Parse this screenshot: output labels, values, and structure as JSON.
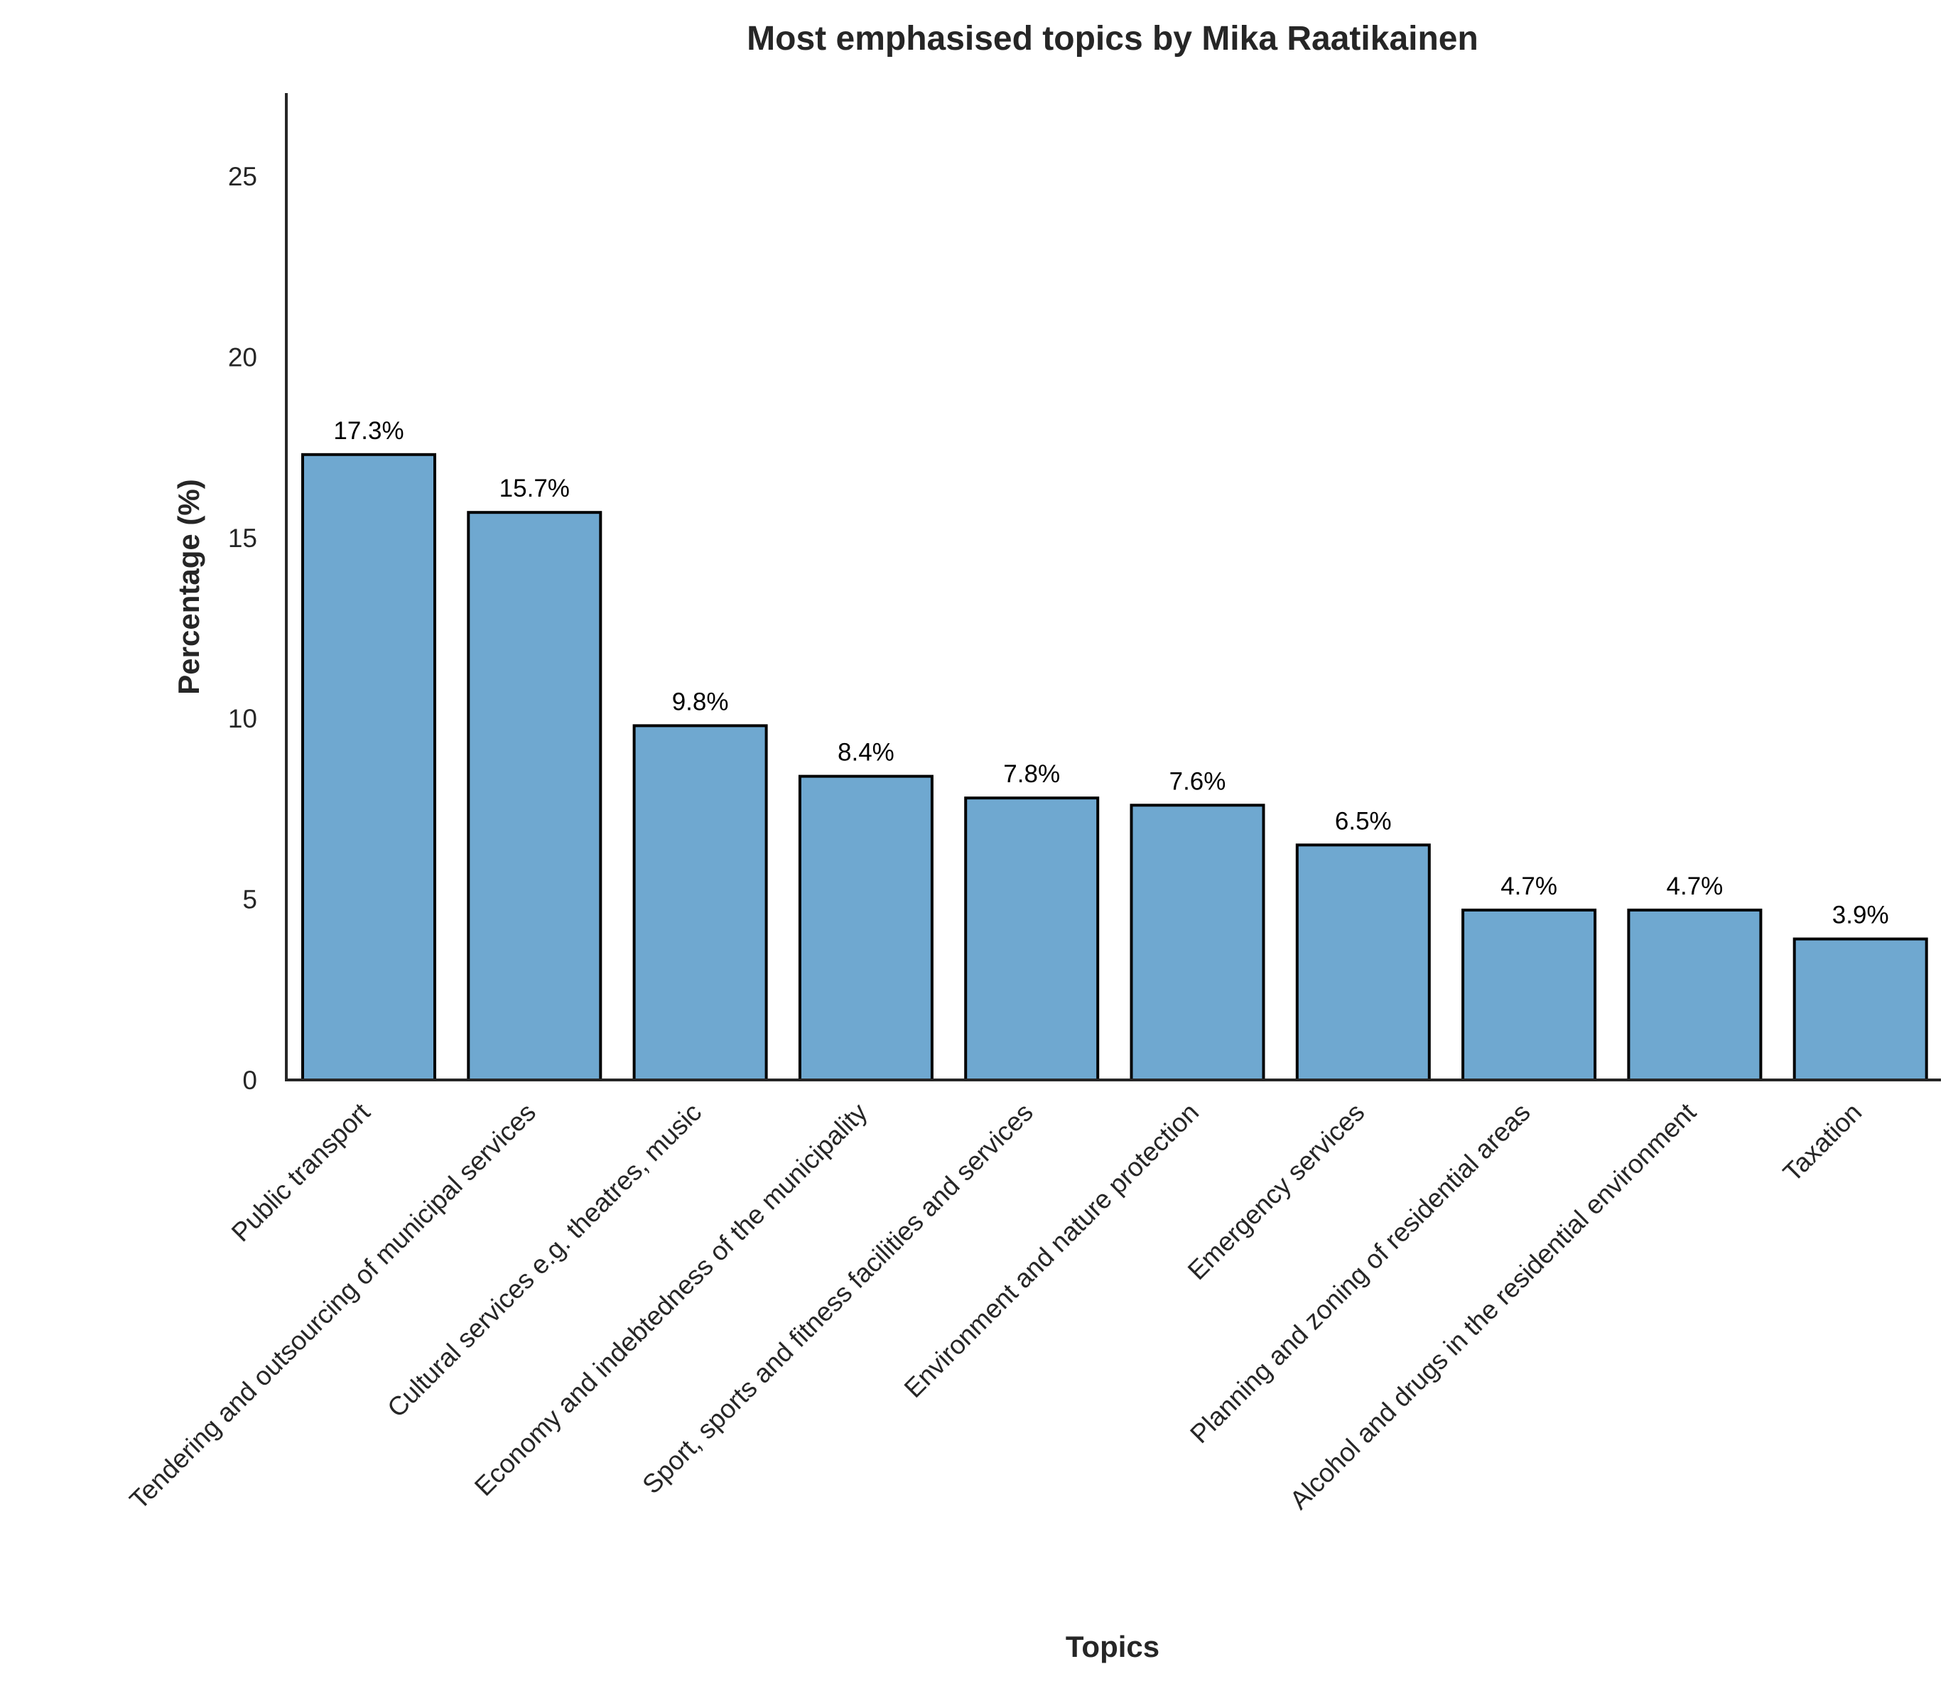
{
  "chart_data": {
    "type": "bar",
    "title": "Most emphasised topics by Mika Raatikainen",
    "xlabel": "Topics",
    "ylabel": "Percentage (%)",
    "categories": [
      "Public transport",
      "Tendering and outsourcing of municipal services",
      "Cultural services e.g. theatres, music",
      "Economy and indebtedness of the municipality",
      "Sport, sports and fitness facilities and services",
      "Environment and nature protection",
      "Emergency services",
      "Planning and zoning of residential areas",
      "Alcohol and drugs in the residential environment",
      "Taxation"
    ],
    "values": [
      17.3,
      15.7,
      9.8,
      8.4,
      7.8,
      7.6,
      6.5,
      4.7,
      4.7,
      3.9
    ],
    "data_labels": [
      "17.3%",
      "15.7%",
      "9.8%",
      "8.4%",
      "7.8%",
      "7.6%",
      "6.5%",
      "4.7%",
      "4.7%",
      "3.9%"
    ],
    "yticks": [
      0,
      5,
      10,
      15,
      20,
      25
    ],
    "ylim": [
      0,
      27.3
    ],
    "grid": false,
    "legend": "none",
    "bar_color": "#6FA8D0",
    "bar_edge_color": "#000000"
  }
}
